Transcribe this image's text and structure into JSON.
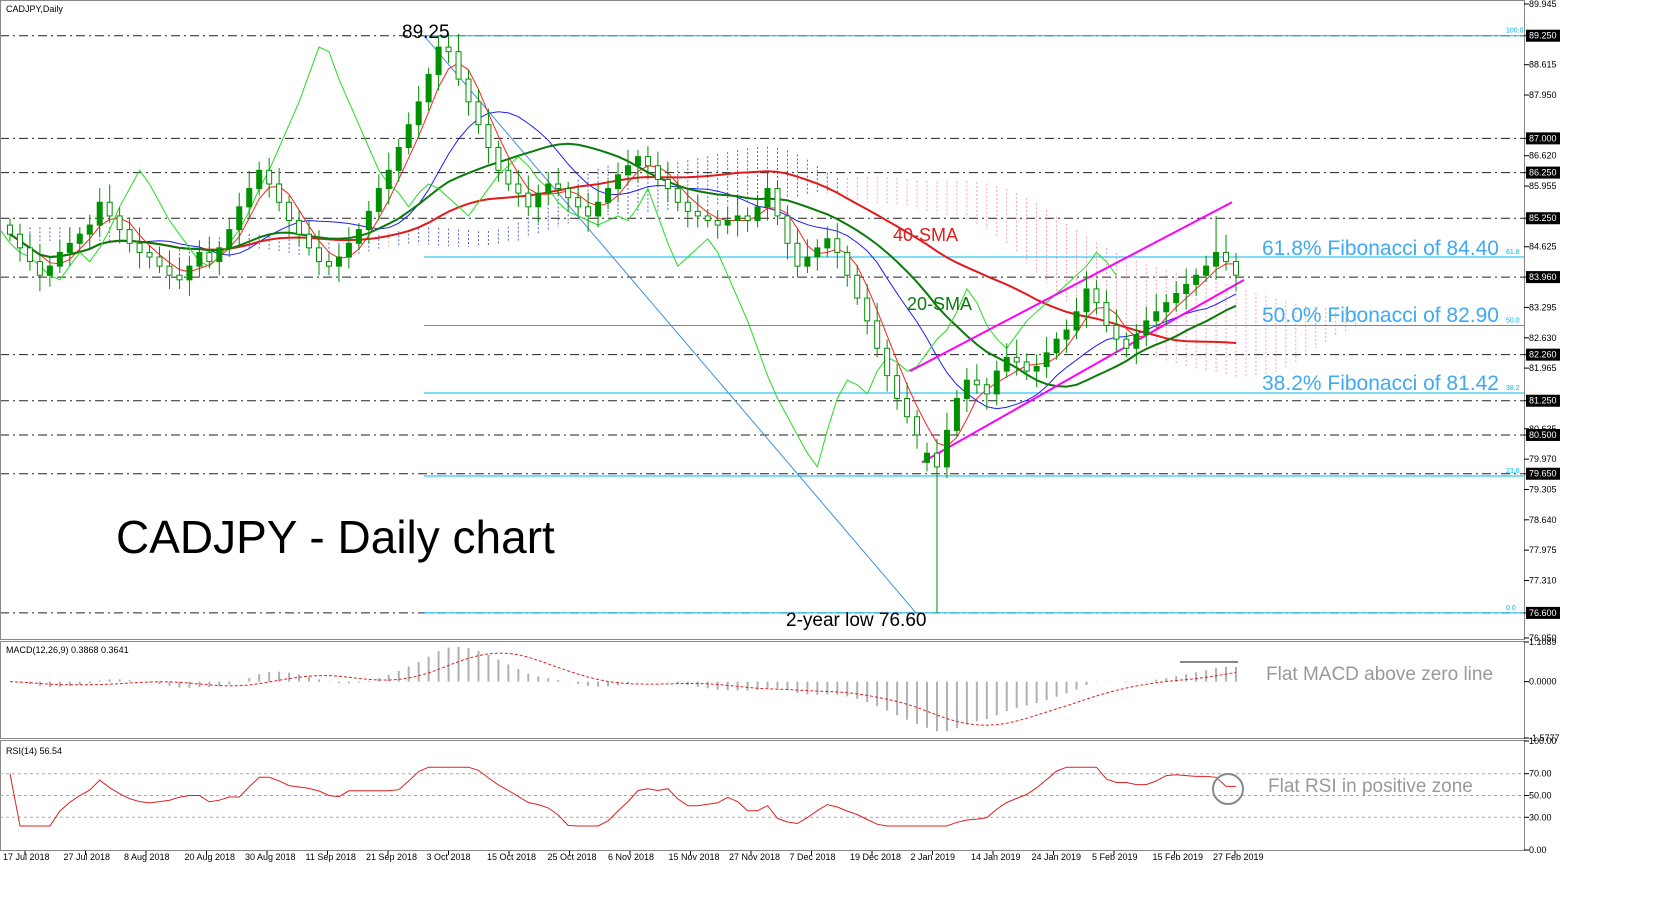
{
  "chart_data": {
    "type": "candlestick",
    "symbol_label": "CADJPY,Daily",
    "title": "CADJPY - Daily chart",
    "y_ticks": [
      "89.945",
      "89.250",
      "88.615",
      "87.950",
      "87.000",
      "86.620",
      "86.250",
      "85.955",
      "85.250",
      "84.625",
      "83.960",
      "83.295",
      "82.630",
      "82.260",
      "81.965",
      "81.250",
      "80.635",
      "80.500",
      "79.970",
      "79.650",
      "79.305",
      "78.640",
      "77.975",
      "77.310",
      "76.600",
      "76.050"
    ],
    "highlight_ticks": [
      "89.250",
      "87.000",
      "86.250",
      "85.250",
      "83.960",
      "82.260",
      "81.250",
      "80.500",
      "79.650",
      "76.600"
    ],
    "x_ticks": [
      "17 Jul 2018",
      "27 Jul 2018",
      "8 Aug 2018",
      "20 Aug 2018",
      "30 Aug 2018",
      "11 Sep 2018",
      "21 Sep 2018",
      "3 Oct 2018",
      "15 Oct 2018",
      "25 Oct 2018",
      "6 Nov 2018",
      "15 Nov 2018",
      "27 Nov 2018",
      "7 Dec 2018",
      "19 Dec 2018",
      "2 Jan 2019",
      "14 Jan 2019",
      "24 Jan 2019",
      "5 Feb 2019",
      "15 Feb 2019",
      "27 Feb 2019"
    ],
    "fib_levels": [
      {
        "pct": "100.0",
        "value": 89.25
      },
      {
        "pct": "61.8",
        "value": 84.4
      },
      {
        "pct": "50.0",
        "value": 82.9
      },
      {
        "pct": "38.2",
        "value": 81.42
      },
      {
        "pct": "23.6",
        "value": 79.6
      },
      {
        "pct": "0.0",
        "value": 76.6
      }
    ],
    "annotations": {
      "high": "89.25",
      "low": "2-year low 76.60",
      "sma40": "40-SMA",
      "sma20": "20-SMA",
      "fib618": "61.8% Fibonacci of 84.40",
      "fib50": "50.0% Fibonacci of 82.90",
      "fib382": "38.2% Fibonacci of 81.42"
    },
    "closes": [
      84.9,
      84.6,
      84.3,
      84.0,
      84.2,
      84.5,
      84.7,
      84.9,
      85.1,
      85.6,
      85.3,
      85.0,
      84.7,
      84.5,
      84.4,
      84.2,
      84.0,
      83.9,
      84.2,
      84.5,
      84.3,
      84.6,
      85.0,
      85.5,
      85.9,
      86.3,
      86.0,
      85.6,
      85.2,
      84.9,
      84.6,
      84.3,
      84.2,
      84.4,
      84.7,
      85.0,
      85.4,
      85.9,
      86.3,
      86.8,
      87.3,
      87.8,
      88.4,
      89.0,
      88.9,
      88.3,
      87.8,
      87.3,
      86.8,
      86.3,
      86.0,
      85.8,
      85.5,
      85.8,
      86.0,
      85.9,
      85.7,
      85.5,
      85.3,
      85.6,
      85.9,
      86.2,
      86.4,
      86.6,
      86.4,
      86.1,
      85.9,
      85.6,
      85.4,
      85.3,
      85.2,
      85.1,
      85.2,
      85.3,
      85.2,
      85.5,
      85.9,
      85.3,
      84.7,
      84.2,
      84.4,
      84.6,
      84.8,
      84.5,
      84.0,
      83.5,
      83.0,
      82.4,
      81.8,
      81.3,
      80.9,
      80.5,
      80.1,
      79.8,
      80.6,
      81.3,
      81.7,
      81.6,
      81.4,
      81.9,
      82.2,
      82.1,
      81.9,
      82.0,
      82.3,
      82.6,
      82.8,
      83.2,
      83.7,
      83.4,
      82.9,
      82.6,
      82.4,
      82.7,
      83.0,
      83.2,
      83.4,
      83.6,
      83.8,
      84.0,
      84.2,
      84.5,
      84.3,
      84.0
    ],
    "macd": {
      "label": "MACD(12,26,9) 0.3868 0.3641",
      "ticks": [
        "1.1089",
        "0.0000",
        "-1.5777"
      ],
      "note": "Flat MACD above zero line"
    },
    "rsi": {
      "label": "RSI(14) 56.54",
      "ticks": [
        "100.00",
        "70.00",
        "50.00",
        "30.00",
        "0.00"
      ],
      "note": "Flat RSI in positive zone"
    },
    "colors": {
      "candle": "#009000",
      "sma40": "#e11b1b",
      "sma20": "#0b7a0b",
      "conversion": "#ff2020",
      "base": "#1c1cff",
      "lagging": "#22dd22",
      "channel": "#ff00ff",
      "fib": "#00b7ee",
      "trend": "#3a8fe0",
      "cloud_blue": "#1020c0",
      "cloud_pink": "#ff7090"
    }
  }
}
